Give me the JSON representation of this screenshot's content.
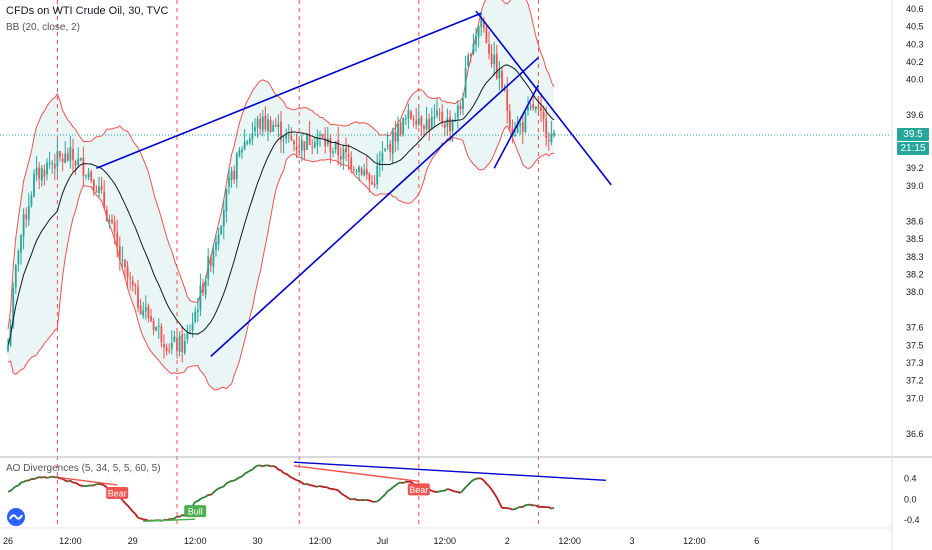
{
  "header": {
    "title": "CFDs on WTI Crude Oil, 30, TVC",
    "indicator": "BB (20, close, 2)",
    "oscillator": "AO Divergences (5, 34, 5, 5, 60, 5)"
  },
  "badges": {
    "last_price": "39.5",
    "countdown": "21:15",
    "last_price_value": 39.5,
    "last_price_color": "#26a69a"
  },
  "colors": {
    "up": "#26a69a",
    "down": "#ef5350",
    "band": "#ef5350",
    "band_fill": "#e0f2f1",
    "basis": "#131722",
    "trendline": "#0000cc",
    "ao_up": "#2e7d32",
    "ao_down": "#b71c1c",
    "bear_label": "#ef5350",
    "bull_label": "#4caf50",
    "divider": "#ef5350"
  },
  "chart_data": {
    "type": "candlestick",
    "symbol": "CFDs on WTI Crude Oil",
    "timeframe": "30",
    "source": "TVC",
    "x_axis": {
      "ticks": [
        "26",
        "12:00",
        "29",
        "12:00",
        "30",
        "12:00",
        "Jul",
        "12:00",
        "2",
        "12:00",
        "3",
        "12:00",
        "6"
      ],
      "tick_bar_index": [
        0,
        24,
        48,
        72,
        96,
        120,
        144,
        168,
        192,
        216,
        240,
        264,
        288
      ]
    },
    "y_axis": {
      "ticks": [
        "40.6",
        "40.5",
        "40.3",
        "40.2",
        "40.0",
        "39.6",
        "39.5",
        "39.3",
        "39.2",
        "39.0",
        "38.6",
        "38.5",
        "38.3",
        "38.2",
        "38.0",
        "37.6",
        "37.5",
        "37.3",
        "37.2",
        "37.0",
        "36.6"
      ],
      "tick_values": [
        40.64,
        40.48,
        40.32,
        40.16,
        40.0,
        39.68,
        39.52,
        39.36,
        39.2,
        39.04,
        38.72,
        38.56,
        38.4,
        38.24,
        38.08,
        37.76,
        37.6,
        37.44,
        37.28,
        37.12,
        36.8
      ],
      "range": [
        36.6,
        40.72
      ]
    },
    "session_breaks_bar_index": [
      19,
      65,
      112,
      158,
      204
    ],
    "close_anchors": [
      [
        0,
        37.6
      ],
      [
        4,
        38.5
      ],
      [
        10,
        39.1
      ],
      [
        16,
        39.25
      ],
      [
        24,
        39.3
      ],
      [
        30,
        39.2
      ],
      [
        34,
        39.05
      ],
      [
        38,
        38.8
      ],
      [
        44,
        38.3
      ],
      [
        50,
        38.0
      ],
      [
        56,
        37.8
      ],
      [
        62,
        37.6
      ],
      [
        68,
        37.6
      ],
      [
        72,
        37.9
      ],
      [
        78,
        38.4
      ],
      [
        84,
        38.95
      ],
      [
        90,
        39.4
      ],
      [
        96,
        39.6
      ],
      [
        102,
        39.6
      ],
      [
        108,
        39.45
      ],
      [
        112,
        39.4
      ],
      [
        118,
        39.5
      ],
      [
        124,
        39.4
      ],
      [
        130,
        39.3
      ],
      [
        136,
        39.2
      ],
      [
        140,
        39.05
      ],
      [
        144,
        39.3
      ],
      [
        150,
        39.55
      ],
      [
        156,
        39.7
      ],
      [
        162,
        39.6
      ],
      [
        166,
        39.65
      ],
      [
        170,
        39.6
      ],
      [
        174,
        39.75
      ],
      [
        178,
        40.3
      ],
      [
        182,
        40.55
      ],
      [
        186,
        40.2
      ],
      [
        190,
        39.95
      ],
      [
        194,
        39.55
      ],
      [
        198,
        39.6
      ],
      [
        202,
        39.75
      ],
      [
        206,
        39.6
      ],
      [
        210,
        39.45
      ]
    ],
    "trendlines": [
      {
        "from": [
          34,
          39.2
        ],
        "to": [
          182,
          40.6
        ]
      },
      {
        "from": [
          78,
          37.5
        ],
        "to": [
          204,
          40.2
        ]
      },
      {
        "from": [
          180,
          40.62
        ],
        "to": [
          232,
          39.05
        ]
      },
      {
        "from": [
          187,
          39.2
        ],
        "to": [
          204,
          39.95
        ]
      }
    ],
    "oscillator": {
      "name": "AO Divergences",
      "params": "5, 34, 5, 5, 60, 5",
      "y_ticks": [
        "0.4",
        "0.0",
        "-0.4"
      ],
      "y_tick_values": [
        0.4,
        0.0,
        -0.4
      ],
      "range": [
        -0.55,
        0.8
      ],
      "anchors": [
        [
          0,
          0.15
        ],
        [
          6,
          0.35
        ],
        [
          12,
          0.42
        ],
        [
          18,
          0.43
        ],
        [
          24,
          0.35
        ],
        [
          30,
          0.25
        ],
        [
          36,
          0.3
        ],
        [
          40,
          0.15
        ],
        [
          44,
          0.0
        ],
        [
          50,
          -0.35
        ],
        [
          56,
          -0.42
        ],
        [
          62,
          -0.38
        ],
        [
          68,
          -0.3
        ],
        [
          72,
          -0.05
        ],
        [
          78,
          0.1
        ],
        [
          84,
          0.3
        ],
        [
          90,
          0.45
        ],
        [
          96,
          0.65
        ],
        [
          102,
          0.65
        ],
        [
          108,
          0.45
        ],
        [
          114,
          0.3
        ],
        [
          120,
          0.25
        ],
        [
          126,
          0.2
        ],
        [
          132,
          0.0
        ],
        [
          138,
          0.0
        ],
        [
          142,
          -0.05
        ],
        [
          146,
          0.15
        ],
        [
          150,
          0.3
        ],
        [
          154,
          0.35
        ],
        [
          158,
          0.25
        ],
        [
          164,
          0.15
        ],
        [
          170,
          0.2
        ],
        [
          174,
          0.12
        ],
        [
          178,
          0.35
        ],
        [
          182,
          0.42
        ],
        [
          186,
          0.2
        ],
        [
          190,
          -0.15
        ],
        [
          194,
          -0.2
        ],
        [
          200,
          -0.1
        ],
        [
          206,
          -0.15
        ],
        [
          210,
          -0.17
        ]
      ],
      "divergence_lines": [
        {
          "from": [
            110,
            0.72
          ],
          "to": [
            230,
            0.37
          ],
          "color": "#0000cc"
        },
        {
          "from": [
            20,
            0.42
          ],
          "to": [
            42,
            0.28
          ],
          "color": "#ef5350"
        },
        {
          "from": [
            110,
            0.65
          ],
          "to": [
            158,
            0.35
          ],
          "color": "#ef5350"
        },
        {
          "from": [
            52,
            -0.42
          ],
          "to": [
            72,
            -0.38
          ],
          "color": "#4caf50"
        }
      ],
      "labels": [
        {
          "text": "Bear",
          "at": [
            42,
            0.28
          ],
          "kind": "bear"
        },
        {
          "text": "Bear",
          "at": [
            158,
            0.35
          ],
          "kind": "bear"
        },
        {
          "text": "Bull",
          "at": [
            72,
            -0.38
          ],
          "kind": "bull"
        }
      ]
    }
  }
}
